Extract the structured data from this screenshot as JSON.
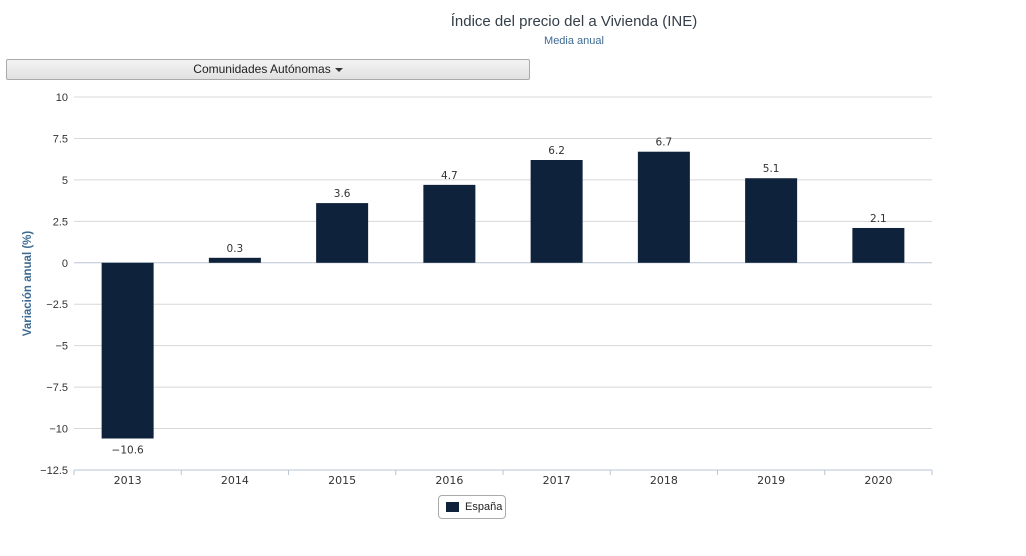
{
  "header": {
    "title": "Índice del precio del a Vivienda (INE)",
    "subtitle": "Media anual"
  },
  "dropdown": {
    "label": "Comunidades Autónomas"
  },
  "colors": {
    "bar": "#0f223b",
    "grid": "#d8d8d8",
    "axis_title": "#3d6a92"
  },
  "chart_data": {
    "type": "bar",
    "title": "Índice del precio del a Vivienda (INE)",
    "subtitle": "Media anual",
    "categories": [
      "2013",
      "2014",
      "2015",
      "2016",
      "2017",
      "2018",
      "2019",
      "2020"
    ],
    "series": [
      {
        "name": "España",
        "values": [
          -10.6,
          0.3,
          3.6,
          4.7,
          6.2,
          6.7,
          5.1,
          2.1
        ]
      }
    ],
    "data_labels": [
      "−10.6",
      "0.3",
      "3.6",
      "4.7",
      "6.2",
      "6.7",
      "5.1",
      "2.1"
    ],
    "xlabel": "",
    "ylabel": "Variación anual (%)",
    "ylim": [
      -12.5,
      10
    ],
    "yticks": [
      10,
      7.5,
      5,
      2.5,
      0,
      -2.5,
      -5,
      -7.5,
      -10,
      -12.5
    ],
    "ytick_labels": [
      "10",
      "7.5",
      "5",
      "2.5",
      "0",
      "−2.5",
      "−5",
      "−7.5",
      "−10",
      "−12.5"
    ],
    "grid": true,
    "legend": "bottom-center"
  }
}
